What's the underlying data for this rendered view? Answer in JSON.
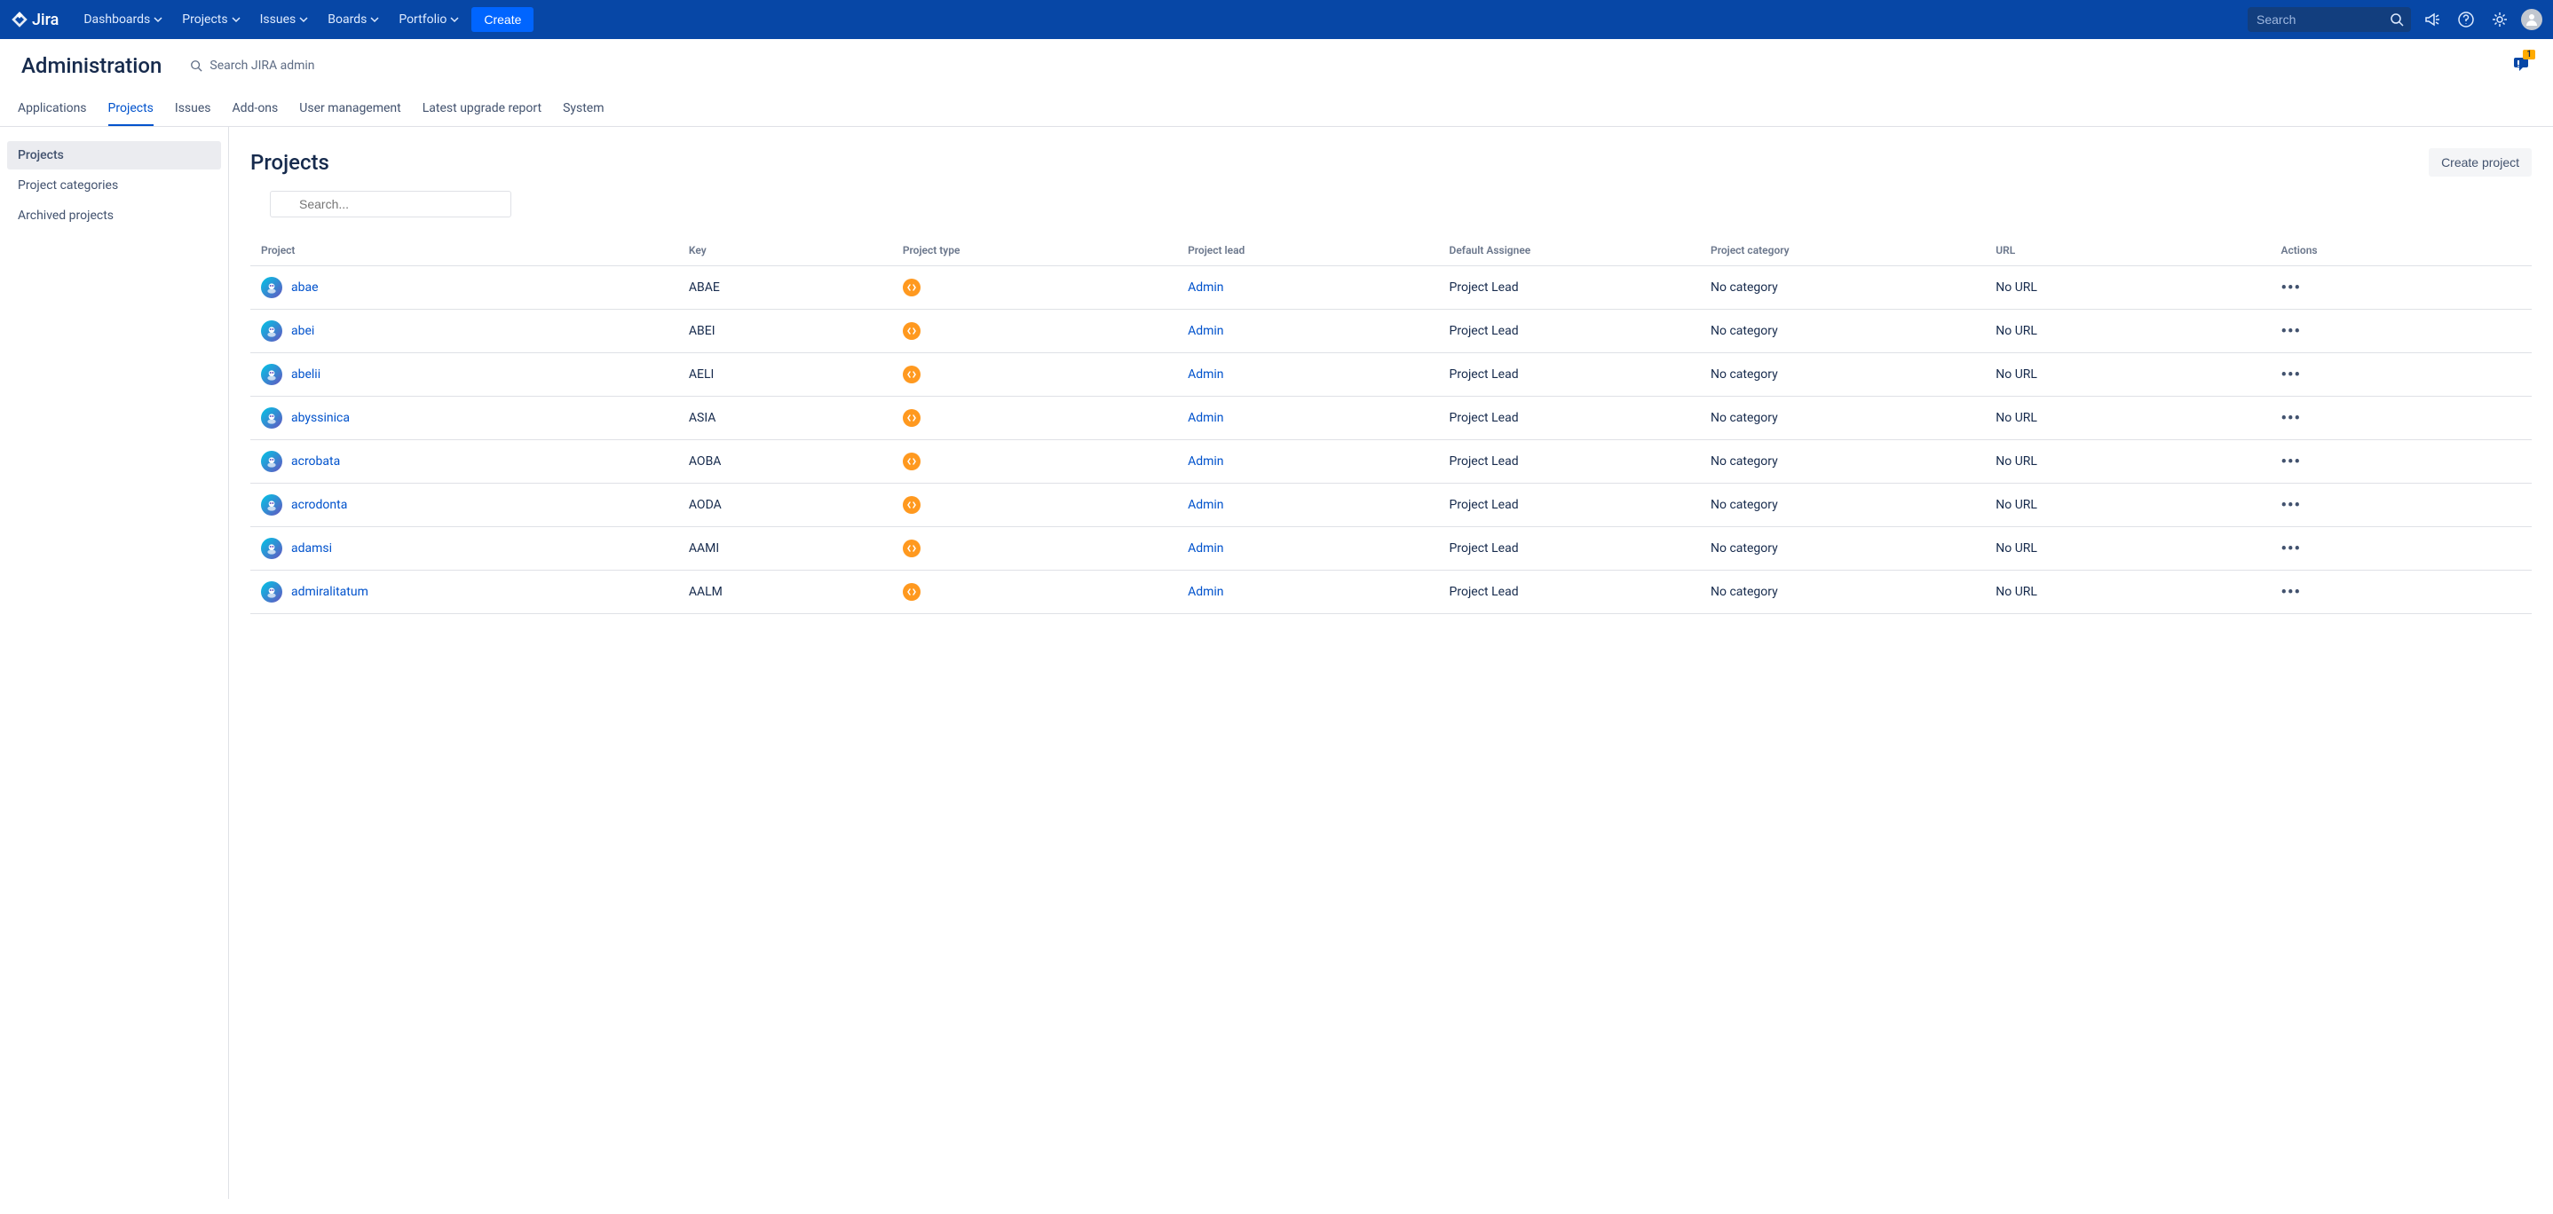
{
  "topnav": {
    "logo": "Jira",
    "items": [
      "Dashboards",
      "Projects",
      "Issues",
      "Boards",
      "Portfolio"
    ],
    "create_label": "Create",
    "search_placeholder": "Search"
  },
  "admin_header": {
    "title": "Administration",
    "search_label": "Search JIRA admin",
    "notification_count": "1"
  },
  "tabs": [
    "Applications",
    "Projects",
    "Issues",
    "Add-ons",
    "User management",
    "Latest upgrade report",
    "System"
  ],
  "active_tab": 1,
  "sidebar": {
    "items": [
      "Projects",
      "Project categories",
      "Archived projects"
    ],
    "active": 0
  },
  "content": {
    "title": "Projects",
    "create_btn": "Create project",
    "search_placeholder": "Search..."
  },
  "table": {
    "columns": [
      "Project",
      "Key",
      "Project type",
      "Project lead",
      "Default Assignee",
      "Project category",
      "URL",
      "Actions"
    ],
    "col_widths": [
      "18%",
      "9%",
      "12%",
      "11%",
      "11%",
      "12%",
      "12%",
      "11%"
    ],
    "link_color": "#0052cc",
    "rows": [
      {
        "name": "abae",
        "key": "ABAE",
        "lead": "Admin",
        "assignee": "Project Lead",
        "category": "No category",
        "url": "No URL"
      },
      {
        "name": "abei",
        "key": "ABEI",
        "lead": "Admin",
        "assignee": "Project Lead",
        "category": "No category",
        "url": "No URL"
      },
      {
        "name": "abelii",
        "key": "AELI",
        "lead": "Admin",
        "assignee": "Project Lead",
        "category": "No category",
        "url": "No URL"
      },
      {
        "name": "abyssinica",
        "key": "ASIA",
        "lead": "Admin",
        "assignee": "Project Lead",
        "category": "No category",
        "url": "No URL"
      },
      {
        "name": "acrobata",
        "key": "AOBA",
        "lead": "Admin",
        "assignee": "Project Lead",
        "category": "No category",
        "url": "No URL"
      },
      {
        "name": "acrodonta",
        "key": "AODA",
        "lead": "Admin",
        "assignee": "Project Lead",
        "category": "No category",
        "url": "No URL"
      },
      {
        "name": "adamsi",
        "key": "AAMI",
        "lead": "Admin",
        "assignee": "Project Lead",
        "category": "No category",
        "url": "No URL"
      },
      {
        "name": "admiralitatum",
        "key": "AALM",
        "lead": "Admin",
        "assignee": "Project Lead",
        "category": "No category",
        "url": "No URL"
      }
    ]
  },
  "colors": {
    "nav_bg": "#0747a6",
    "link": "#0052cc",
    "accent": "#0065ff",
    "type_icon": "#ff991f"
  }
}
